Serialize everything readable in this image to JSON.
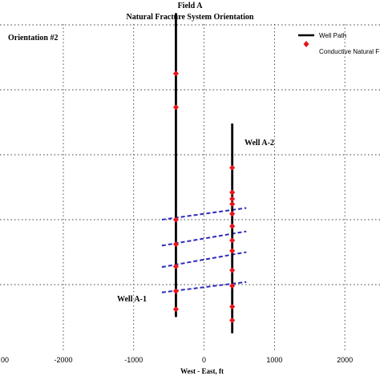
{
  "chart_data": {
    "type": "scatter",
    "title": "Field A",
    "subtitle": "Natural Fracture System Orientation",
    "xlabel": "West - East,  ft",
    "ylabel": "",
    "xlim": [
      -2900,
      2500
    ],
    "x_ticks": [
      -2000,
      -1000,
      0,
      1000,
      2000
    ],
    "x_tick_labels": [
      "-2000",
      "-1000",
      "0",
      "1000",
      "2000"
    ],
    "x_partial_tick_label": "00",
    "y_gridlines": [
      0,
      1,
      2,
      3,
      4
    ],
    "grid": true,
    "legend_position": "top-right",
    "legend": [
      {
        "label": "Well Path",
        "marker": "line",
        "color": "#000000"
      },
      {
        "label": "Conductive Natural F",
        "marker": "diamond",
        "color": "#e8141b"
      }
    ],
    "annotations": [
      {
        "text": "Orientation #2"
      },
      {
        "text": "Well A-2"
      },
      {
        "text": "Well A-1"
      }
    ],
    "wells": [
      {
        "name": "Well A-1",
        "x": -400,
        "y_top": 4.18,
        "y_bottom": -0.5
      },
      {
        "name": "Well A-2",
        "x": 400,
        "y_top": 2.48,
        "y_bottom": -0.75
      }
    ],
    "fractures": [
      {
        "x": -400,
        "y": 3.25
      },
      {
        "x": -400,
        "y": 2.73
      },
      {
        "x": -400,
        "y": 1.0
      },
      {
        "x": -400,
        "y": 0.62
      },
      {
        "x": -400,
        "y": 0.28
      },
      {
        "x": -400,
        "y": -0.1
      },
      {
        "x": -400,
        "y": -0.38
      },
      {
        "x": 400,
        "y": 1.8
      },
      {
        "x": 400,
        "y": 1.42
      },
      {
        "x": 400,
        "y": 1.32
      },
      {
        "x": 400,
        "y": 1.24
      },
      {
        "x": 400,
        "y": 1.09
      },
      {
        "x": 400,
        "y": 0.9
      },
      {
        "x": 400,
        "y": 0.68
      },
      {
        "x": 400,
        "y": 0.52
      },
      {
        "x": 400,
        "y": 0.22
      },
      {
        "x": 400,
        "y": -0.02
      },
      {
        "x": 400,
        "y": -0.34
      },
      {
        "x": 400,
        "y": -0.55
      }
    ],
    "fracture_planes": [
      {
        "x1": -600,
        "y1": 1.0,
        "x2": 600,
        "y2": 1.18
      },
      {
        "x1": -600,
        "y1": 0.6,
        "x2": 600,
        "y2": 0.82
      },
      {
        "x1": -600,
        "y1": 0.27,
        "x2": 600,
        "y2": 0.5
      },
      {
        "x1": -600,
        "y1": -0.12,
        "x2": 600,
        "y2": 0.04
      }
    ],
    "plane_color": "#2b2bbd"
  }
}
